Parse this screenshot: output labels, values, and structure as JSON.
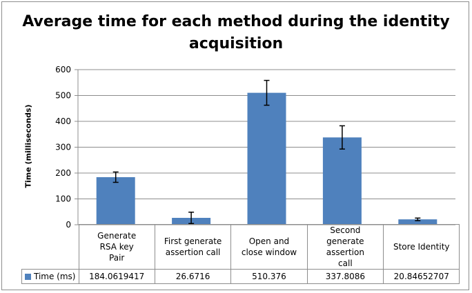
{
  "chart_data": {
    "type": "bar",
    "title": "Average time for each method during the identity acquisition",
    "xlabel": "",
    "ylabel": "Time (milliseconds)",
    "ylim": [
      0,
      600
    ],
    "yticks": [
      "0",
      "100",
      "200",
      "300",
      "400",
      "500",
      "600"
    ],
    "grid": true,
    "legend_position": "data table",
    "categories": [
      "Generate RSA key Pair",
      "First generate assertion call",
      "Open and close window",
      "Second generate assertion call",
      "Store Identity"
    ],
    "series": [
      {
        "name": "Time (ms)",
        "color": "#4f81bd",
        "values": [
          184.0619417,
          26.6716,
          510.376,
          337.8086,
          20.84652707
        ],
        "value_labels": [
          "184.0619417",
          "26.6716",
          "510.376",
          "337.8086",
          "20.84652707"
        ],
        "error": [
          20,
          22,
          48,
          45,
          5
        ]
      }
    ]
  }
}
